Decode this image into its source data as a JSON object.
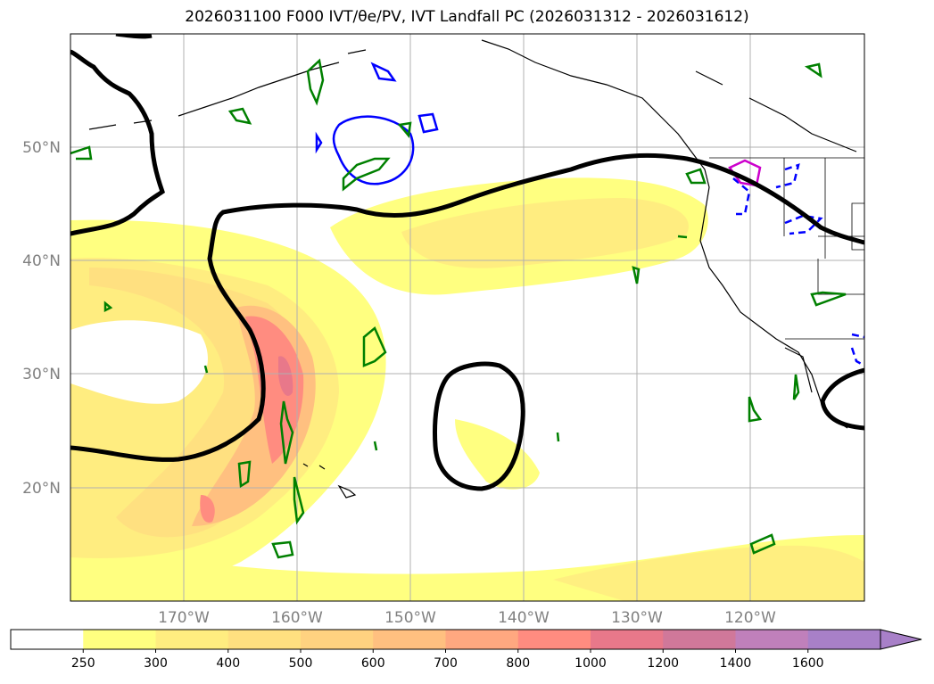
{
  "title": "2026031100 F000 IVT/θe/PV, IVT Landfall PC (2026031312 - 2026031612)",
  "map": {
    "lat_labels": [
      "50°N",
      "40°N",
      "30°N",
      "20°N"
    ],
    "lon_labels": [
      "170°W",
      "160°W",
      "150°W",
      "140°W",
      "130°W",
      "120°W"
    ]
  },
  "colorbar": {
    "ticks": [
      "250",
      "300",
      "400",
      "500",
      "600",
      "700",
      "800",
      "1000",
      "1200",
      "1400",
      "1600"
    ],
    "colors": [
      "#ffffff",
      "#ffff80",
      "#ffed80",
      "#ffe080",
      "#ffd280",
      "#ffc080",
      "#ffa880",
      "#ff8c80",
      "#e8788a",
      "#d0789a",
      "#c080bb",
      "#a880c8"
    ]
  }
}
